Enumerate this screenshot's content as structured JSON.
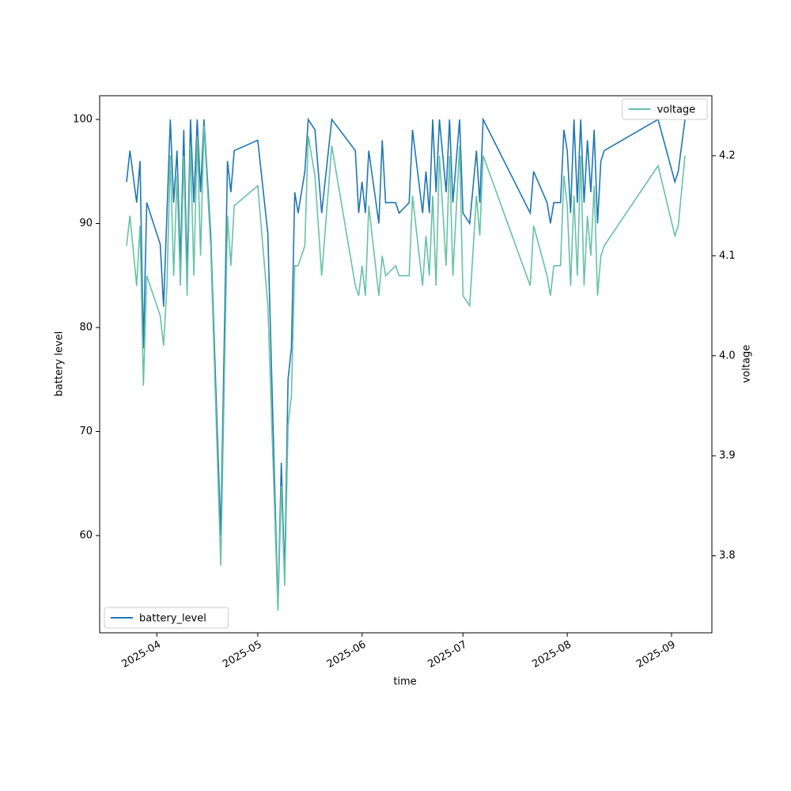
{
  "chart_data": {
    "type": "line",
    "xlabel": "time",
    "ylabel": "battery level",
    "y2label": "voltage",
    "x": [
      "2025-03-23",
      "2025-03-24",
      "2025-03-26",
      "2025-03-27",
      "2025-03-28",
      "2025-03-29",
      "2025-04-02",
      "2025-04-03",
      "2025-04-04",
      "2025-04-05",
      "2025-04-06",
      "2025-04-07",
      "2025-04-08",
      "2025-04-09",
      "2025-04-10",
      "2025-04-11",
      "2025-04-12",
      "2025-04-13",
      "2025-04-14",
      "2025-04-15",
      "2025-04-17",
      "2025-04-20",
      "2025-04-22",
      "2025-04-23",
      "2025-04-24",
      "2025-05-01",
      "2025-05-04",
      "2025-05-07",
      "2025-05-08",
      "2025-05-09",
      "2025-05-10",
      "2025-05-11",
      "2025-05-12",
      "2025-05-13",
      "2025-05-15",
      "2025-05-16",
      "2025-05-18",
      "2025-05-20",
      "2025-05-23",
      "2025-05-30",
      "2025-05-31",
      "2025-06-01",
      "2025-06-02",
      "2025-06-03",
      "2025-06-06",
      "2025-06-07",
      "2025-06-08",
      "2025-06-11",
      "2025-06-12",
      "2025-06-15",
      "2025-06-16",
      "2025-06-19",
      "2025-06-20",
      "2025-06-21",
      "2025-06-22",
      "2025-06-23",
      "2025-06-24",
      "2025-06-26",
      "2025-06-27",
      "2025-06-28",
      "2025-06-30",
      "2025-07-01",
      "2025-07-03",
      "2025-07-05",
      "2025-07-06",
      "2025-07-07",
      "2025-07-21",
      "2025-07-22",
      "2025-07-26",
      "2025-07-27",
      "2025-07-28",
      "2025-07-30",
      "2025-07-31",
      "2025-08-01",
      "2025-08-02",
      "2025-08-03",
      "2025-08-04",
      "2025-08-05",
      "2025-08-06",
      "2025-08-07",
      "2025-08-08",
      "2025-08-09",
      "2025-08-10",
      "2025-08-11",
      "2025-08-12",
      "2025-08-28",
      "2025-09-02",
      "2025-09-03",
      "2025-09-05"
    ],
    "series": [
      {
        "name": "battery_level",
        "color": "#1f77b4",
        "legend": "lower left",
        "values": [
          94,
          97,
          92,
          96,
          78,
          92,
          88,
          82,
          91,
          100,
          92,
          97,
          86,
          99,
          85,
          100,
          92,
          100,
          93,
          100,
          89,
          60,
          96,
          93,
          97,
          98,
          89,
          53,
          67,
          56,
          75,
          78,
          93,
          91,
          95,
          100,
          99,
          91,
          100,
          97,
          91,
          94,
          91,
          97,
          90,
          98,
          92,
          92,
          91,
          92,
          99,
          91,
          95,
          91,
          100,
          93,
          100,
          93,
          100,
          92,
          100,
          91,
          90,
          97,
          92,
          100,
          91,
          95,
          92,
          90,
          92,
          92,
          99,
          97,
          91,
          100,
          92,
          100,
          92,
          98,
          93,
          99,
          90,
          96,
          97,
          100,
          94,
          95,
          100
        ]
      },
      {
        "name": "voltage",
        "color": "#66c2a5",
        "axis": "y2",
        "legend": "upper right",
        "values": [
          4.11,
          4.14,
          4.07,
          4.13,
          3.97,
          4.08,
          4.04,
          4.01,
          4.07,
          4.2,
          4.08,
          4.18,
          4.07,
          4.2,
          4.06,
          4.21,
          4.08,
          4.22,
          4.1,
          4.23,
          4.11,
          3.79,
          4.14,
          4.09,
          4.15,
          4.17,
          4.05,
          3.745,
          3.87,
          3.77,
          3.93,
          3.96,
          4.09,
          4.09,
          4.11,
          4.22,
          4.18,
          4.08,
          4.21,
          4.07,
          4.06,
          4.09,
          4.06,
          4.15,
          4.06,
          4.1,
          4.08,
          4.09,
          4.08,
          4.08,
          4.16,
          4.07,
          4.12,
          4.08,
          4.16,
          4.07,
          4.2,
          4.09,
          4.2,
          4.08,
          4.21,
          4.06,
          4.05,
          4.16,
          4.12,
          4.2,
          4.07,
          4.13,
          4.08,
          4.06,
          4.09,
          4.09,
          4.18,
          4.15,
          4.07,
          4.16,
          4.08,
          4.2,
          4.07,
          4.14,
          4.1,
          4.17,
          4.06,
          4.1,
          4.11,
          4.19,
          4.12,
          4.13,
          4.2
        ]
      }
    ],
    "xlim": [
      "2025-03-15",
      "2025-09-13"
    ],
    "xticks": [
      {
        "value": "2025-04-01",
        "label": "2025-04"
      },
      {
        "value": "2025-05-01",
        "label": "2025-05"
      },
      {
        "value": "2025-06-01",
        "label": "2025-06"
      },
      {
        "value": "2025-07-01",
        "label": "2025-07"
      },
      {
        "value": "2025-08-01",
        "label": "2025-08"
      },
      {
        "value": "2025-09-01",
        "label": "2025-09"
      }
    ],
    "ylim": [
      50.65,
      102.28
    ],
    "yticks": [
      60,
      70,
      80,
      90,
      100
    ],
    "y2lim": [
      3.723,
      4.26
    ],
    "y2ticks": [
      3.8,
      3.9,
      {
        "value": 4,
        "label": "4.0"
      },
      4.1,
      4.2
    ],
    "grid": false
  }
}
